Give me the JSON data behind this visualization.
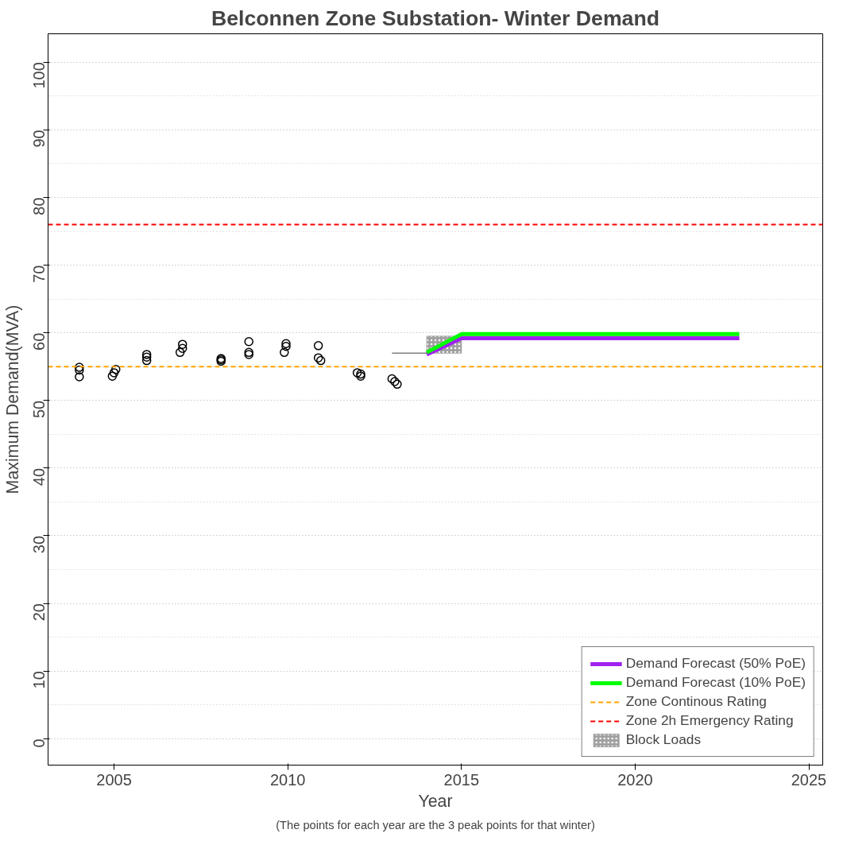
{
  "chart_data": {
    "type": "scatter",
    "title": "Belconnen Zone Substation- Winter Demand",
    "xlabel": "Year",
    "ylabel": "Maximum Demand(MVA)",
    "annotations": [
      "(The points for each year are the 3 peak points for that winter)"
    ],
    "xlim": [
      2003.1,
      2025.4
    ],
    "ylim": [
      -3.9,
      104.2
    ],
    "xticks": [
      2005,
      2010,
      2015,
      2020,
      2025
    ],
    "yticks": [
      0,
      10,
      20,
      30,
      40,
      50,
      60,
      70,
      80,
      90,
      100
    ],
    "grid": true,
    "legend": "bottom right",
    "marker": "circle",
    "series": [
      {
        "color": "#000000",
        "x": [
          2004.0,
          2004.0,
          2004.0,
          2004.95,
          2005.0,
          2005.05,
          2005.94,
          2005.94,
          2005.94,
          2006.97,
          2006.97,
          2006.9,
          2008.08,
          2008.08,
          2008.08,
          2008.88,
          2008.88,
          2008.88,
          2009.95,
          2009.95,
          2009.9,
          2010.88,
          2010.88,
          2010.95,
          2012.0,
          2012.1,
          2012.1,
          2013.0,
          2013.08,
          2013.15
        ],
        "values": [
          54.9,
          54.5,
          53.5,
          53.6,
          54.1,
          54.6,
          56.8,
          56.4,
          55.9,
          58.3,
          57.7,
          57.1,
          56.2,
          56.0,
          55.8,
          58.7,
          57.1,
          56.8,
          58.4,
          58.0,
          57.1,
          58.1,
          56.3,
          55.9,
          54.1,
          53.9,
          53.6,
          53.2,
          52.8,
          52.4
        ]
      },
      {
        "type": "line",
        "marker": "none",
        "color": "#808080",
        "x": [
          2013.0,
          2014.0
        ],
        "values": [
          57.0,
          57.0
        ]
      },
      {
        "type": "bar",
        "name": "Block Loads",
        "color": "#a0a0a0",
        "x": [
          2014.5
        ],
        "base": [
          57.0
        ],
        "values": [
          2.5
        ]
      },
      {
        "type": "line",
        "marker": "none",
        "name": "Demand Forecast (50% PoE)",
        "color": "#a020f0",
        "x": [
          2014.0,
          2015.0,
          2023.0
        ],
        "values": [
          56.8,
          59.2,
          59.2
        ]
      },
      {
        "type": "line",
        "marker": "none",
        "name": "Demand Forecast (10% PoE)",
        "color": "#00ff00",
        "x": [
          2014.0,
          2015.0,
          2023.0
        ],
        "values": [
          57.1,
          59.8,
          59.8
        ]
      }
    ],
    "ref_lines": [
      {
        "axis": "y",
        "value": 55,
        "label": "Zone Continous Rating",
        "color": "#ffa500",
        "line_style": "dashed"
      },
      {
        "axis": "y",
        "value": 76,
        "label": "Zone 2h Emergency Rating",
        "color": "#ff0000",
        "line_style": "dashed"
      }
    ]
  }
}
